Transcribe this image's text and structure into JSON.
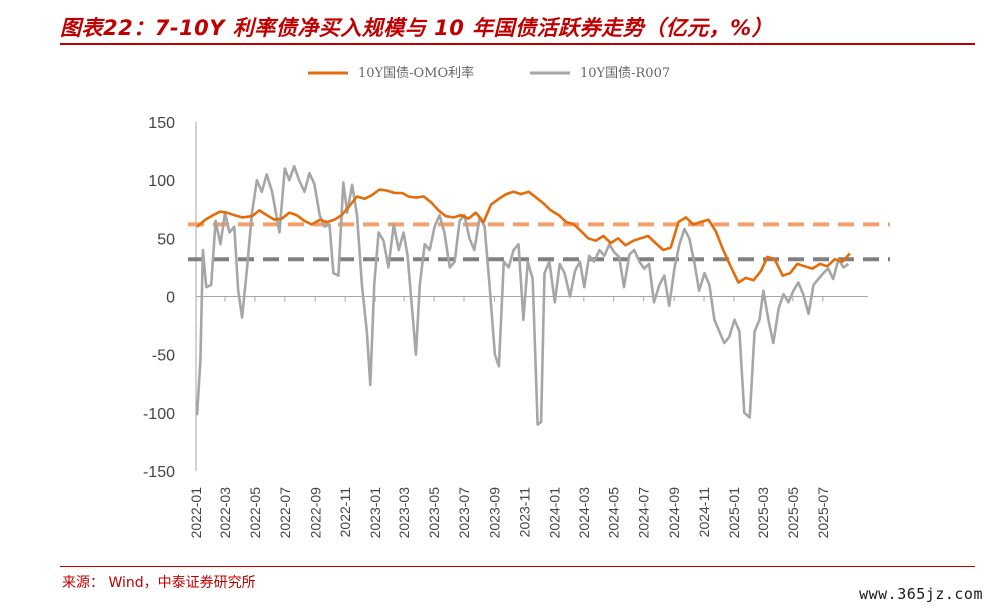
{
  "header": {
    "title": "图表22：7-10Y 利率债净买入规模与 10 年国债活跃券走势（亿元，%）"
  },
  "footer": {
    "source": "来源：   Wind，中泰证券研究所",
    "watermark": "www.365jz.com"
  },
  "chart_data": {
    "type": "line",
    "title": "",
    "xlabel": "",
    "ylabel": "",
    "ylim": [
      -150,
      150
    ],
    "yticks": [
      150,
      100,
      50,
      0,
      -50,
      -100,
      -150
    ],
    "xlim": [
      "2022-01-01",
      "2025-10-01"
    ],
    "xticks": [
      "2022-01",
      "2022-03",
      "2022-05",
      "2022-07",
      "2022-09",
      "2022-11",
      "2023-01",
      "2023-03",
      "2023-05",
      "2023-07",
      "2023-09",
      "2023-11",
      "2024-01",
      "2024-03",
      "2024-05",
      "2024-07",
      "2024-09",
      "2024-11",
      "2025-01",
      "2025-03",
      "2025-05",
      "2025-07"
    ],
    "grid": false,
    "legend": "top",
    "series": [
      {
        "name": "10Y国债-OMO利率",
        "color": "#e46c0a",
        "points": [
          [
            "2022-01-03",
            60
          ],
          [
            "2022-01-20",
            66
          ],
          [
            "2022-02-05",
            70
          ],
          [
            "2022-02-20",
            73
          ],
          [
            "2022-03-05",
            72
          ],
          [
            "2022-03-20",
            70
          ],
          [
            "2022-04-05",
            68
          ],
          [
            "2022-04-25",
            69
          ],
          [
            "2022-05-10",
            74
          ],
          [
            "2022-05-25",
            70
          ],
          [
            "2022-06-10",
            66
          ],
          [
            "2022-06-25",
            67
          ],
          [
            "2022-07-10",
            72
          ],
          [
            "2022-07-25",
            70
          ],
          [
            "2022-08-10",
            65
          ],
          [
            "2022-08-25",
            62
          ],
          [
            "2022-09-10",
            66
          ],
          [
            "2022-09-25",
            64
          ],
          [
            "2022-10-10",
            66
          ],
          [
            "2022-10-25",
            70
          ],
          [
            "2022-11-10",
            78
          ],
          [
            "2022-11-25",
            86
          ],
          [
            "2022-12-10",
            84
          ],
          [
            "2022-12-25",
            87
          ],
          [
            "2023-01-10",
            92
          ],
          [
            "2023-01-25",
            91
          ],
          [
            "2023-02-10",
            89
          ],
          [
            "2023-02-25",
            89
          ],
          [
            "2023-03-10",
            86
          ],
          [
            "2023-03-25",
            85
          ],
          [
            "2023-04-10",
            86
          ],
          [
            "2023-04-25",
            81
          ],
          [
            "2023-05-10",
            74
          ],
          [
            "2023-05-25",
            69
          ],
          [
            "2023-06-10",
            68
          ],
          [
            "2023-06-25",
            70
          ],
          [
            "2023-07-10",
            67
          ],
          [
            "2023-07-25",
            72
          ],
          [
            "2023-08-10",
            64
          ],
          [
            "2023-08-25",
            79
          ],
          [
            "2023-09-10",
            84
          ],
          [
            "2023-09-25",
            88
          ],
          [
            "2023-10-10",
            90
          ],
          [
            "2023-10-25",
            88
          ],
          [
            "2023-11-10",
            90
          ],
          [
            "2023-11-25",
            85
          ],
          [
            "2023-12-10",
            80
          ],
          [
            "2023-12-25",
            74
          ],
          [
            "2024-01-10",
            70
          ],
          [
            "2024-01-25",
            64
          ],
          [
            "2024-02-10",
            62
          ],
          [
            "2024-02-25",
            56
          ],
          [
            "2024-03-10",
            50
          ],
          [
            "2024-03-25",
            48
          ],
          [
            "2024-04-10",
            52
          ],
          [
            "2024-04-25",
            46
          ],
          [
            "2024-05-10",
            50
          ],
          [
            "2024-05-25",
            44
          ],
          [
            "2024-06-10",
            48
          ],
          [
            "2024-06-25",
            50
          ],
          [
            "2024-07-10",
            52
          ],
          [
            "2024-07-25",
            46
          ],
          [
            "2024-08-10",
            40
          ],
          [
            "2024-08-25",
            42
          ],
          [
            "2024-09-10",
            64
          ],
          [
            "2024-09-25",
            68
          ],
          [
            "2024-10-10",
            62
          ],
          [
            "2024-10-25",
            64
          ],
          [
            "2024-11-10",
            66
          ],
          [
            "2024-11-25",
            56
          ],
          [
            "2024-12-10",
            40
          ],
          [
            "2024-12-25",
            26
          ],
          [
            "2025-01-10",
            12
          ],
          [
            "2025-01-25",
            16
          ],
          [
            "2025-02-10",
            14
          ],
          [
            "2025-02-25",
            22
          ],
          [
            "2025-03-10",
            34
          ],
          [
            "2025-03-25",
            32
          ],
          [
            "2025-04-10",
            18
          ],
          [
            "2025-04-25",
            20
          ],
          [
            "2025-05-10",
            28
          ],
          [
            "2025-05-25",
            26
          ],
          [
            "2025-06-10",
            24
          ],
          [
            "2025-06-25",
            28
          ],
          [
            "2025-07-10",
            26
          ],
          [
            "2025-07-25",
            32
          ],
          [
            "2025-08-10",
            30
          ],
          [
            "2025-08-25",
            37
          ]
        ]
      },
      {
        "name": "10Y国债-R007",
        "color": "#a6a6a6",
        "points": [
          [
            "2022-01-03",
            -102
          ],
          [
            "2022-01-10",
            -55
          ],
          [
            "2022-01-15",
            40
          ],
          [
            "2022-01-22",
            8
          ],
          [
            "2022-02-01",
            10
          ],
          [
            "2022-02-10",
            65
          ],
          [
            "2022-02-20",
            45
          ],
          [
            "2022-03-01",
            72
          ],
          [
            "2022-03-10",
            55
          ],
          [
            "2022-03-20",
            60
          ],
          [
            "2022-03-28",
            5
          ],
          [
            "2022-04-05",
            -18
          ],
          [
            "2022-04-15",
            25
          ],
          [
            "2022-04-25",
            72
          ],
          [
            "2022-05-05",
            100
          ],
          [
            "2022-05-15",
            90
          ],
          [
            "2022-05-25",
            105
          ],
          [
            "2022-06-05",
            90
          ],
          [
            "2022-06-20",
            55
          ],
          [
            "2022-07-01",
            110
          ],
          [
            "2022-07-10",
            100
          ],
          [
            "2022-07-20",
            112
          ],
          [
            "2022-07-30",
            100
          ],
          [
            "2022-08-10",
            90
          ],
          [
            "2022-08-20",
            106
          ],
          [
            "2022-08-30",
            97
          ],
          [
            "2022-09-10",
            70
          ],
          [
            "2022-09-20",
            60
          ],
          [
            "2022-09-30",
            62
          ],
          [
            "2022-10-08",
            20
          ],
          [
            "2022-10-18",
            18
          ],
          [
            "2022-10-28",
            98
          ],
          [
            "2022-11-05",
            72
          ],
          [
            "2022-11-15",
            96
          ],
          [
            "2022-11-25",
            70
          ],
          [
            "2022-12-05",
            10
          ],
          [
            "2022-12-15",
            -30
          ],
          [
            "2022-12-22",
            -76
          ],
          [
            "2022-12-30",
            10
          ],
          [
            "2023-01-08",
            55
          ],
          [
            "2023-01-18",
            48
          ],
          [
            "2023-01-28",
            25
          ],
          [
            "2023-02-08",
            62
          ],
          [
            "2023-02-18",
            40
          ],
          [
            "2023-02-28",
            55
          ],
          [
            "2023-03-08",
            35
          ],
          [
            "2023-03-18",
            -15
          ],
          [
            "2023-03-25",
            -50
          ],
          [
            "2023-04-02",
            10
          ],
          [
            "2023-04-12",
            45
          ],
          [
            "2023-04-22",
            40
          ],
          [
            "2023-05-02",
            60
          ],
          [
            "2023-05-12",
            70
          ],
          [
            "2023-05-22",
            55
          ],
          [
            "2023-06-02",
            25
          ],
          [
            "2023-06-12",
            30
          ],
          [
            "2023-06-22",
            65
          ],
          [
            "2023-07-02",
            70
          ],
          [
            "2023-07-12",
            50
          ],
          [
            "2023-07-22",
            40
          ],
          [
            "2023-08-02",
            68
          ],
          [
            "2023-08-12",
            60
          ],
          [
            "2023-08-22",
            10
          ],
          [
            "2023-09-02",
            -50
          ],
          [
            "2023-09-10",
            -60
          ],
          [
            "2023-09-20",
            30
          ],
          [
            "2023-09-30",
            25
          ],
          [
            "2023-10-10",
            40
          ],
          [
            "2023-10-20",
            45
          ],
          [
            "2023-10-30",
            -20
          ],
          [
            "2023-11-08",
            30
          ],
          [
            "2023-11-18",
            15
          ],
          [
            "2023-11-28",
            -110
          ],
          [
            "2023-12-05",
            -108
          ],
          [
            "2023-12-12",
            20
          ],
          [
            "2023-12-22",
            30
          ],
          [
            "2024-01-02",
            -5
          ],
          [
            "2024-01-12",
            28
          ],
          [
            "2024-01-22",
            20
          ],
          [
            "2024-02-02",
            0
          ],
          [
            "2024-02-12",
            22
          ],
          [
            "2024-02-22",
            30
          ],
          [
            "2024-03-02",
            8
          ],
          [
            "2024-03-12",
            35
          ],
          [
            "2024-03-22",
            30
          ],
          [
            "2024-04-02",
            40
          ],
          [
            "2024-04-12",
            35
          ],
          [
            "2024-04-22",
            45
          ],
          [
            "2024-05-02",
            38
          ],
          [
            "2024-05-12",
            34
          ],
          [
            "2024-05-22",
            8
          ],
          [
            "2024-06-02",
            36
          ],
          [
            "2024-06-12",
            40
          ],
          [
            "2024-06-22",
            30
          ],
          [
            "2024-07-02",
            24
          ],
          [
            "2024-07-12",
            28
          ],
          [
            "2024-07-22",
            -5
          ],
          [
            "2024-08-02",
            10
          ],
          [
            "2024-08-12",
            18
          ],
          [
            "2024-08-22",
            -8
          ],
          [
            "2024-09-02",
            25
          ],
          [
            "2024-09-12",
            45
          ],
          [
            "2024-09-22",
            58
          ],
          [
            "2024-10-02",
            50
          ],
          [
            "2024-10-12",
            30
          ],
          [
            "2024-10-22",
            5
          ],
          [
            "2024-11-02",
            20
          ],
          [
            "2024-11-12",
            10
          ],
          [
            "2024-11-22",
            -20
          ],
          [
            "2024-12-02",
            -30
          ],
          [
            "2024-12-12",
            -40
          ],
          [
            "2024-12-22",
            -35
          ],
          [
            "2025-01-02",
            -20
          ],
          [
            "2025-01-12",
            -30
          ],
          [
            "2025-01-22",
            -100
          ],
          [
            "2025-02-02",
            -104
          ],
          [
            "2025-02-12",
            -30
          ],
          [
            "2025-02-22",
            -20
          ],
          [
            "2025-03-02",
            5
          ],
          [
            "2025-03-12",
            -20
          ],
          [
            "2025-03-22",
            -40
          ],
          [
            "2025-04-02",
            -10
          ],
          [
            "2025-04-12",
            2
          ],
          [
            "2025-04-22",
            -5
          ],
          [
            "2025-05-02",
            5
          ],
          [
            "2025-05-12",
            12
          ],
          [
            "2025-05-22",
            2
          ],
          [
            "2025-06-02",
            -15
          ],
          [
            "2025-06-12",
            10
          ],
          [
            "2025-06-22",
            15
          ],
          [
            "2025-07-02",
            20
          ],
          [
            "2025-07-12",
            24
          ],
          [
            "2025-07-22",
            15
          ],
          [
            "2025-08-02",
            32
          ],
          [
            "2025-08-12",
            25
          ],
          [
            "2025-08-22",
            28
          ]
        ]
      }
    ],
    "reference_lines": [
      {
        "color": "#f4a06c",
        "value": 62
      },
      {
        "color": "#808080",
        "value": 32
      }
    ]
  }
}
